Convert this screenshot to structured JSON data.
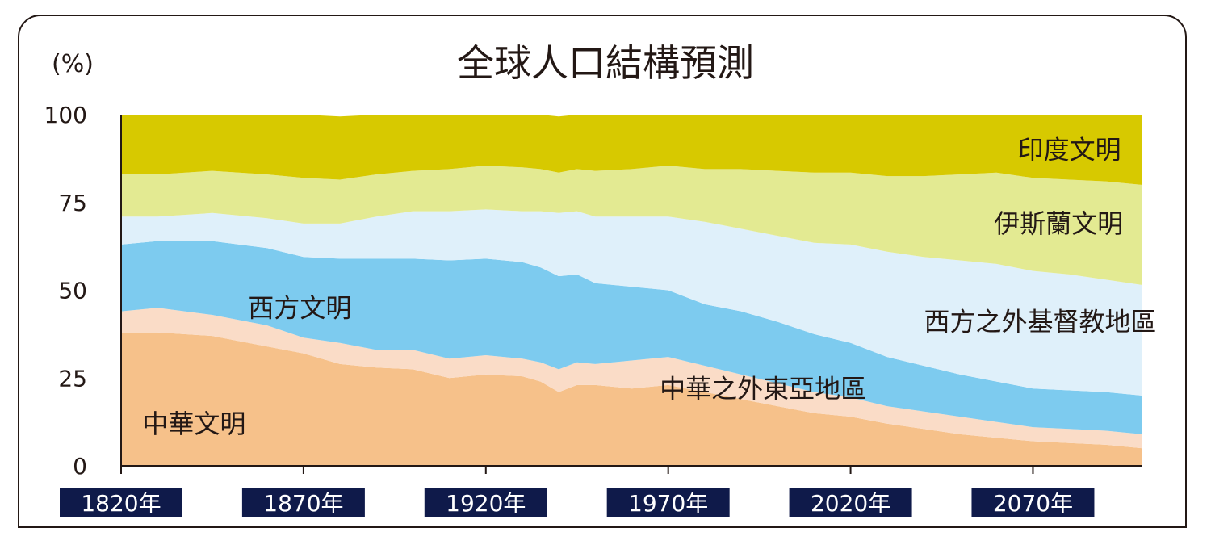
{
  "chart_data": {
    "type": "area",
    "stacked": true,
    "title": "全球人口結構預測",
    "unit_label": "(%)",
    "ylim": [
      0,
      100
    ],
    "yticks": [
      0,
      25,
      50,
      75,
      100
    ],
    "x": [
      1820,
      1830,
      1845,
      1860,
      1870,
      1880,
      1890,
      1900,
      1910,
      1920,
      1930,
      1935,
      1940,
      1945,
      1950,
      1960,
      1970,
      1980,
      1990,
      2000,
      2010,
      2020,
      2030,
      2040,
      2050,
      2060,
      2070,
      2080,
      2090,
      2100
    ],
    "xticks": [
      1820,
      1870,
      1920,
      1970,
      2020,
      2070
    ],
    "xtick_labels": [
      "1820年",
      "1870年",
      "1920年",
      "1970年",
      "2020年",
      "2070年"
    ],
    "series": [
      {
        "name": "中華文明",
        "color": "#f6c18a",
        "label_pos": [
          1840,
          12
        ],
        "values": [
          38,
          38,
          37,
          34,
          32,
          29,
          28,
          27.5,
          25,
          26,
          25.5,
          24,
          21,
          23,
          23,
          22,
          23,
          21,
          19,
          17,
          15,
          14,
          12,
          10.5,
          9,
          8,
          7,
          6.5,
          6,
          5
        ]
      },
      {
        "name": "中華之外東亞地區",
        "color": "#fadcc7",
        "label_pos": [
          1996,
          22
        ],
        "values": [
          6,
          7,
          6,
          6,
          4.5,
          6,
          5,
          5.5,
          5.5,
          5.5,
          5,
          5.5,
          6.5,
          6.5,
          6,
          8,
          8,
          7.5,
          7,
          6.5,
          6,
          5.5,
          5,
          5,
          5,
          4.5,
          4,
          4,
          4,
          4
        ]
      },
      {
        "name": "西方文明",
        "color": "#7dcbef",
        "label_pos": [
          1869,
          45
        ],
        "values": [
          19,
          19,
          21,
          22,
          23,
          24,
          26,
          26,
          28,
          27.5,
          27.5,
          27,
          26.5,
          25,
          23,
          21,
          19,
          17.5,
          18,
          17.5,
          16.5,
          15.5,
          14,
          13,
          12,
          11.5,
          11,
          11,
          11,
          11
        ]
      },
      {
        "name": "西方之外基督教地區",
        "color": "#dff0fa",
        "label_pos": [
          2072,
          41
        ],
        "values": [
          8,
          7,
          8,
          8.5,
          9.5,
          10,
          12,
          13.5,
          14,
          14,
          14.5,
          16,
          18,
          18,
          19,
          20,
          21,
          23.5,
          23.5,
          24.5,
          26,
          28,
          30,
          31,
          32.5,
          33.5,
          33.5,
          33,
          32,
          31.5
        ]
      },
      {
        "name": "伊斯蘭文明",
        "color": "#e3ea92",
        "label_pos": [
          2077,
          69
        ],
        "values": [
          12,
          12,
          12,
          12.5,
          13,
          12.5,
          12,
          11.5,
          12,
          12.5,
          12.5,
          12,
          11.5,
          12,
          13,
          13.5,
          14.5,
          15,
          17,
          18.5,
          20,
          20.5,
          21.5,
          23,
          24.5,
          26,
          26.5,
          27,
          28,
          28.5
        ]
      },
      {
        "name": "印度文明",
        "color": "#d7c900",
        "label_pos": [
          2080,
          90
        ],
        "values": [
          17,
          17,
          16,
          17,
          18,
          18,
          17,
          16,
          15.5,
          14.5,
          15,
          15.5,
          16,
          15.5,
          16,
          15.5,
          14.5,
          15.5,
          15.5,
          16,
          16.5,
          16.5,
          17.5,
          17.5,
          17,
          16.5,
          18,
          18.5,
          19,
          20
        ]
      }
    ]
  }
}
